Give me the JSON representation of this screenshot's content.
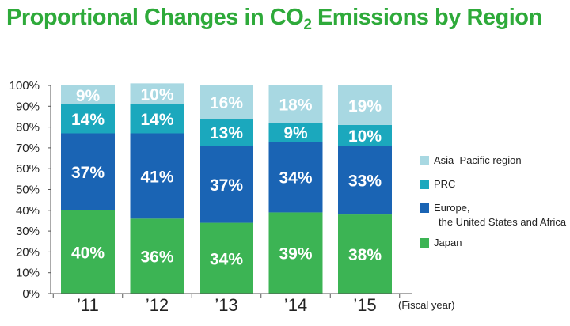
{
  "title": {
    "prefix": "Proportional Changes in CO",
    "subscript": "2",
    "suffix": " Emissions by Region"
  },
  "chart_data": {
    "type": "bar",
    "stacked": true,
    "title": "Proportional Changes in CO2 Emissions by Region",
    "categories": [
      "’11",
      "’12",
      "’13",
      "’14",
      "’15"
    ],
    "xlabel": "(Fiscal year)",
    "ylabel": "",
    "ylim": [
      0,
      100
    ],
    "yticks": [
      "0%",
      "10%",
      "20%",
      "30%",
      "40%",
      "50%",
      "60%",
      "70%",
      "80%",
      "90%",
      "100%"
    ],
    "series": [
      {
        "name": "Japan",
        "color": "#3cb454",
        "values": [
          40,
          36,
          34,
          39,
          38
        ],
        "labels": [
          "40%",
          "36%",
          "34%",
          "39%",
          "38%"
        ]
      },
      {
        "name": "Europe,\nthe United States and Africa",
        "color": "#1a64b4",
        "values": [
          37,
          41,
          37,
          34,
          33
        ],
        "labels": [
          "37%",
          "41%",
          "37%",
          "34%",
          "33%"
        ]
      },
      {
        "name": "PRC",
        "color": "#1ba8bd",
        "values": [
          14,
          14,
          13,
          9,
          10
        ],
        "labels": [
          "14%",
          "14%",
          "13%",
          "9%",
          "10%"
        ]
      },
      {
        "name": "Asia–Pacific region",
        "color": "#a8d8e2",
        "values": [
          9,
          10,
          16,
          18,
          19
        ],
        "labels": [
          "9%",
          "10%",
          "16%",
          "18%",
          "19%"
        ]
      }
    ],
    "legend_position": "right",
    "legend_order": [
      "Asia–Pacific region",
      "PRC",
      "Europe,\nthe United States and Africa",
      "Japan"
    ],
    "grid": false
  }
}
